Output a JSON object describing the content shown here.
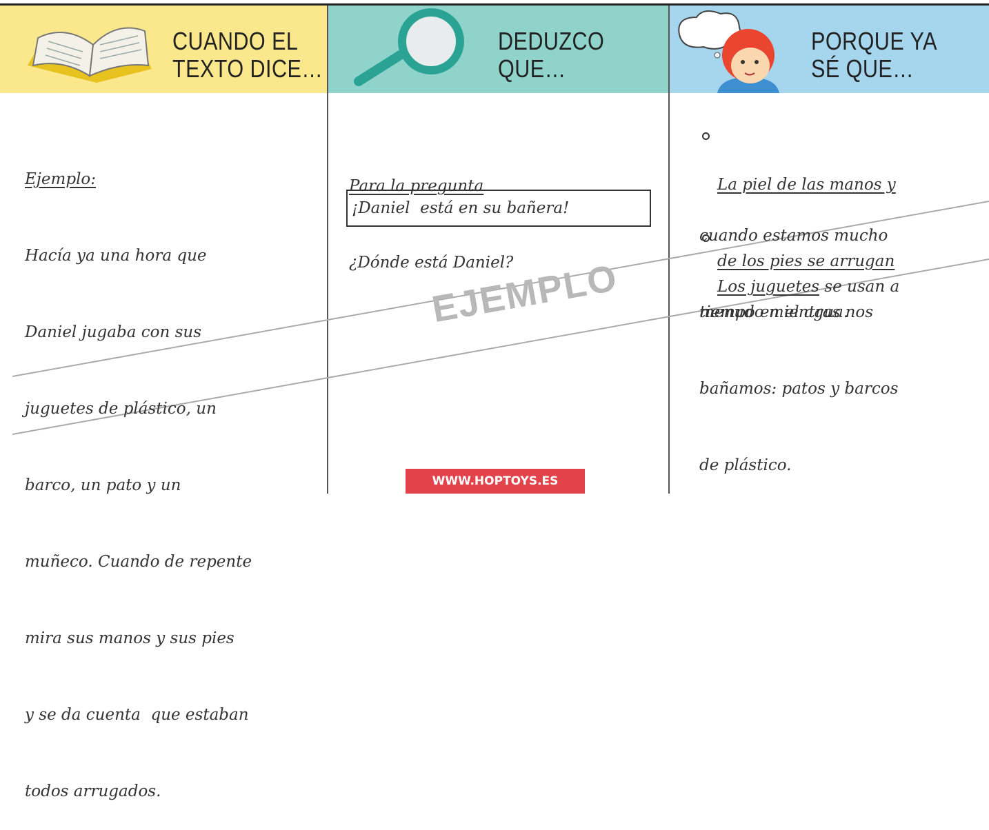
{
  "columns": [
    {
      "title": [
        "CUANDO EL",
        "TEXTO DICE…"
      ],
      "heading": "Ejemplo:",
      "lines": [
        "Hacía ya una hora que",
        "Daniel jugaba con sus",
        "juguetes de plástico, un",
        "barco, un pato y un",
        "muñeco. Cuando de repente",
        "mira sus manos y sus pies",
        "y se da cuenta  que estaban",
        "todos arrugados."
      ]
    },
    {
      "title": [
        "DEDUZCO",
        "QUE…"
      ],
      "heading": "Para la pregunta",
      "lines": [
        "¿Dónde está Daniel?"
      ],
      "answer": "¡Daniel  está en su bañera!"
    },
    {
      "title": [
        "PORQUE YA",
        "SÉ QUE…"
      ],
      "bullets": [
        [
          "La piel de las manos y",
          "de los pies se arrugan",
          "cuando estamos mucho",
          "tiempo en el agua."
        ],
        [
          "Los juguetes",
          " se usan a",
          "menudo mientras nos",
          "bañamos: patos y barcos",
          "de plástico."
        ]
      ]
    }
  ],
  "watermark": "EJEMPLO",
  "footer": "WWW.HOPTOYS.ES"
}
